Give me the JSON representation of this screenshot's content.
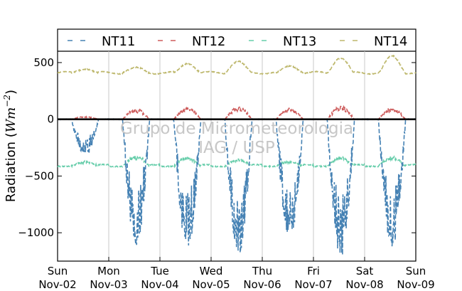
{
  "chart_data": {
    "type": "line",
    "ylabel": "Radiation (Wm⁻²)",
    "ylabel_parts": {
      "base": "Radiation (",
      "unit": "Wm",
      "exp": "−2",
      "close": ")"
    },
    "ylim": [
      -1250,
      600
    ],
    "yticks": [
      500,
      0,
      -500,
      -1000
    ],
    "ytick_labels": [
      "500",
      "0",
      "−500",
      "−1000"
    ],
    "xlim_days": [
      0,
      7
    ],
    "xtick_labels": [
      [
        "Sun",
        "Nov-02"
      ],
      [
        "Mon",
        "Nov-03"
      ],
      [
        "Tue",
        "Nov-04"
      ],
      [
        "Wed",
        "Nov-05"
      ],
      [
        "Thu",
        "Nov-06"
      ],
      [
        "Fri",
        "Nov-07"
      ],
      [
        "Sat",
        "Nov-08"
      ],
      [
        "Sun",
        "Nov-09"
      ]
    ],
    "grid": "vertical",
    "legend_position": "top",
    "watermark": [
      "Grupo de Micrometeorologia",
      "IAG / USP"
    ],
    "series": [
      {
        "name": "NT11",
        "color": "#4682b4",
        "daily_min": [
          -310,
          -1120,
          -1150,
          -1180,
          -1060,
          -1200,
          -1130
        ],
        "night_level": 0
      },
      {
        "name": "NT12",
        "color": "#cd5c5c",
        "daily_max": [
          25,
          95,
          110,
          120,
          100,
          120,
          105
        ],
        "night_level": 0
      },
      {
        "name": "NT13",
        "color": "#66cdaa",
        "night_level": -415,
        "daily_peak": [
          -370,
          -320,
          -330,
          -350,
          -370,
          -330,
          -330
        ]
      },
      {
        "name": "NT14",
        "color": "#bdb76b",
        "night_level": 410,
        "daily_peak": [
          440,
          460,
          490,
          510,
          470,
          540,
          560
        ]
      }
    ]
  }
}
